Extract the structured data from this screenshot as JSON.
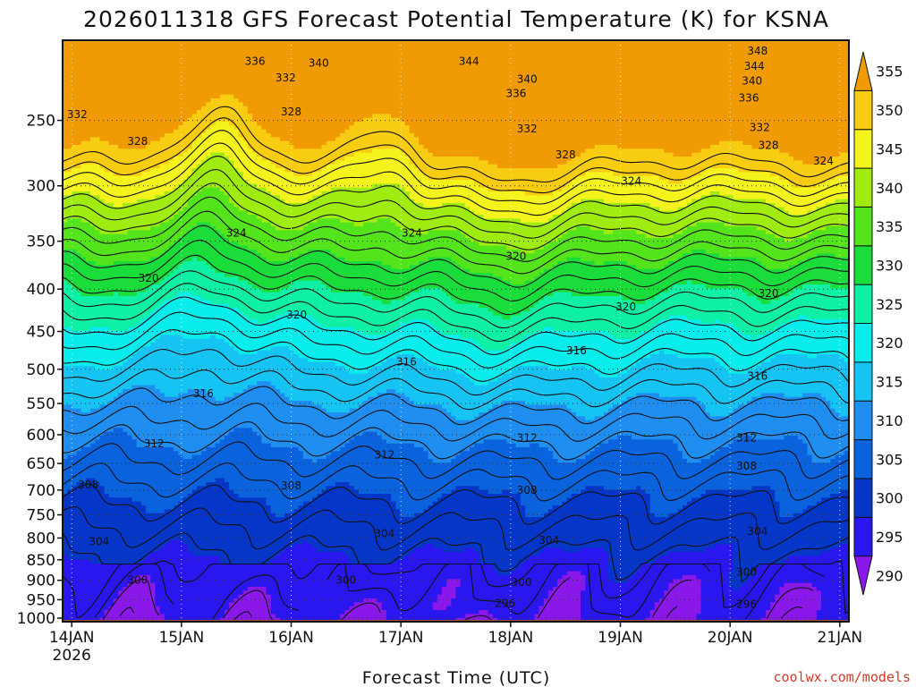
{
  "chart_data": {
    "type": "heatmap",
    "title": "2026011318 GFS Forecast Potential Temperature (K) for KSNA",
    "xlabel": "Forecast Time (UTC)",
    "ylabel": "",
    "credit": "coolwx.com/models",
    "x_ticks": [
      {
        "day": 0,
        "label": "14JAN",
        "sublabel": "2026"
      },
      {
        "day": 1,
        "label": "15JAN"
      },
      {
        "day": 2,
        "label": "16JAN"
      },
      {
        "day": 3,
        "label": "17JAN"
      },
      {
        "day": 4,
        "label": "18JAN"
      },
      {
        "day": 5,
        "label": "19JAN"
      },
      {
        "day": 6,
        "label": "20JAN"
      },
      {
        "day": 7,
        "label": "21JAN"
      }
    ],
    "xlim_days": [
      -0.083,
      7.083
    ],
    "y_axis": "pressure (hPa), log scale, inverted",
    "ylim": [
      1010,
      200
    ],
    "y_ticks": [
      250,
      300,
      350,
      400,
      450,
      500,
      550,
      600,
      650,
      700,
      750,
      800,
      850,
      900,
      950,
      1000
    ],
    "color_levels": [
      290,
      295,
      300,
      305,
      310,
      315,
      320,
      325,
      330,
      335,
      340,
      345,
      350,
      355
    ],
    "color_stops": [
      "#8a18e8",
      "#2a16ee",
      "#0636c8",
      "#0a62dc",
      "#1f8ef0",
      "#16c4f4",
      "#08ecec",
      "#0ef0a6",
      "#1adc3a",
      "#54e41c",
      "#a0ec10",
      "#f4f41c",
      "#f8cc10",
      "#f09a04"
    ],
    "ground_color": "#a0522d",
    "contour_labels": [
      {
        "text": "336",
        "day": 1.67,
        "p": 212
      },
      {
        "text": "340",
        "day": 2.25,
        "p": 213
      },
      {
        "text": "344",
        "day": 3.62,
        "p": 212
      },
      {
        "text": "348",
        "day": 6.25,
        "p": 206
      },
      {
        "text": "344",
        "day": 6.22,
        "p": 215
      },
      {
        "text": "340",
        "day": 6.2,
        "p": 224
      },
      {
        "text": "336",
        "day": 6.17,
        "p": 235
      },
      {
        "text": "332",
        "day": 0.05,
        "p": 246
      },
      {
        "text": "332",
        "day": 1.95,
        "p": 222
      },
      {
        "text": "340",
        "day": 4.15,
        "p": 223
      },
      {
        "text": "336",
        "day": 4.05,
        "p": 232
      },
      {
        "text": "328",
        "day": 2.0,
        "p": 244
      },
      {
        "text": "332",
        "day": 4.15,
        "p": 256
      },
      {
        "text": "332",
        "day": 6.27,
        "p": 255
      },
      {
        "text": "328",
        "day": 0.6,
        "p": 265
      },
      {
        "text": "328",
        "day": 4.5,
        "p": 275
      },
      {
        "text": "328",
        "day": 6.35,
        "p": 268
      },
      {
        "text": "324",
        "day": 6.85,
        "p": 280
      },
      {
        "text": "324",
        "day": 1.5,
        "p": 342
      },
      {
        "text": "324",
        "day": 3.1,
        "p": 342
      },
      {
        "text": "324",
        "day": 5.1,
        "p": 296
      },
      {
        "text": "320",
        "day": 0.7,
        "p": 388
      },
      {
        "text": "320",
        "day": 4.05,
        "p": 365
      },
      {
        "text": "320",
        "day": 2.05,
        "p": 430
      },
      {
        "text": "320",
        "day": 5.05,
        "p": 420
      },
      {
        "text": "320",
        "day": 6.35,
        "p": 405
      },
      {
        "text": "316",
        "day": 3.05,
        "p": 490
      },
      {
        "text": "316",
        "day": 4.6,
        "p": 475
      },
      {
        "text": "316",
        "day": 1.2,
        "p": 535
      },
      {
        "text": "316",
        "day": 6.25,
        "p": 510
      },
      {
        "text": "312",
        "day": 0.75,
        "p": 615
      },
      {
        "text": "312",
        "day": 2.85,
        "p": 635
      },
      {
        "text": "312",
        "day": 4.15,
        "p": 605
      },
      {
        "text": "312",
        "day": 6.15,
        "p": 605
      },
      {
        "text": "308",
        "day": 0.15,
        "p": 690
      },
      {
        "text": "308",
        "day": 2.0,
        "p": 692
      },
      {
        "text": "308",
        "day": 4.15,
        "p": 700
      },
      {
        "text": "308",
        "day": 6.15,
        "p": 655
      },
      {
        "text": "304",
        "day": 0.25,
        "p": 808
      },
      {
        "text": "304",
        "day": 2.85,
        "p": 790
      },
      {
        "text": "304",
        "day": 4.35,
        "p": 805
      },
      {
        "text": "304",
        "day": 6.25,
        "p": 785
      },
      {
        "text": "300",
        "day": 0.6,
        "p": 900
      },
      {
        "text": "300",
        "day": 2.5,
        "p": 900
      },
      {
        "text": "300",
        "day": 4.1,
        "p": 905
      },
      {
        "text": "300",
        "day": 6.15,
        "p": 880
      },
      {
        "text": "296",
        "day": 3.95,
        "p": 960
      },
      {
        "text": "296",
        "day": 6.15,
        "p": 962
      }
    ]
  }
}
